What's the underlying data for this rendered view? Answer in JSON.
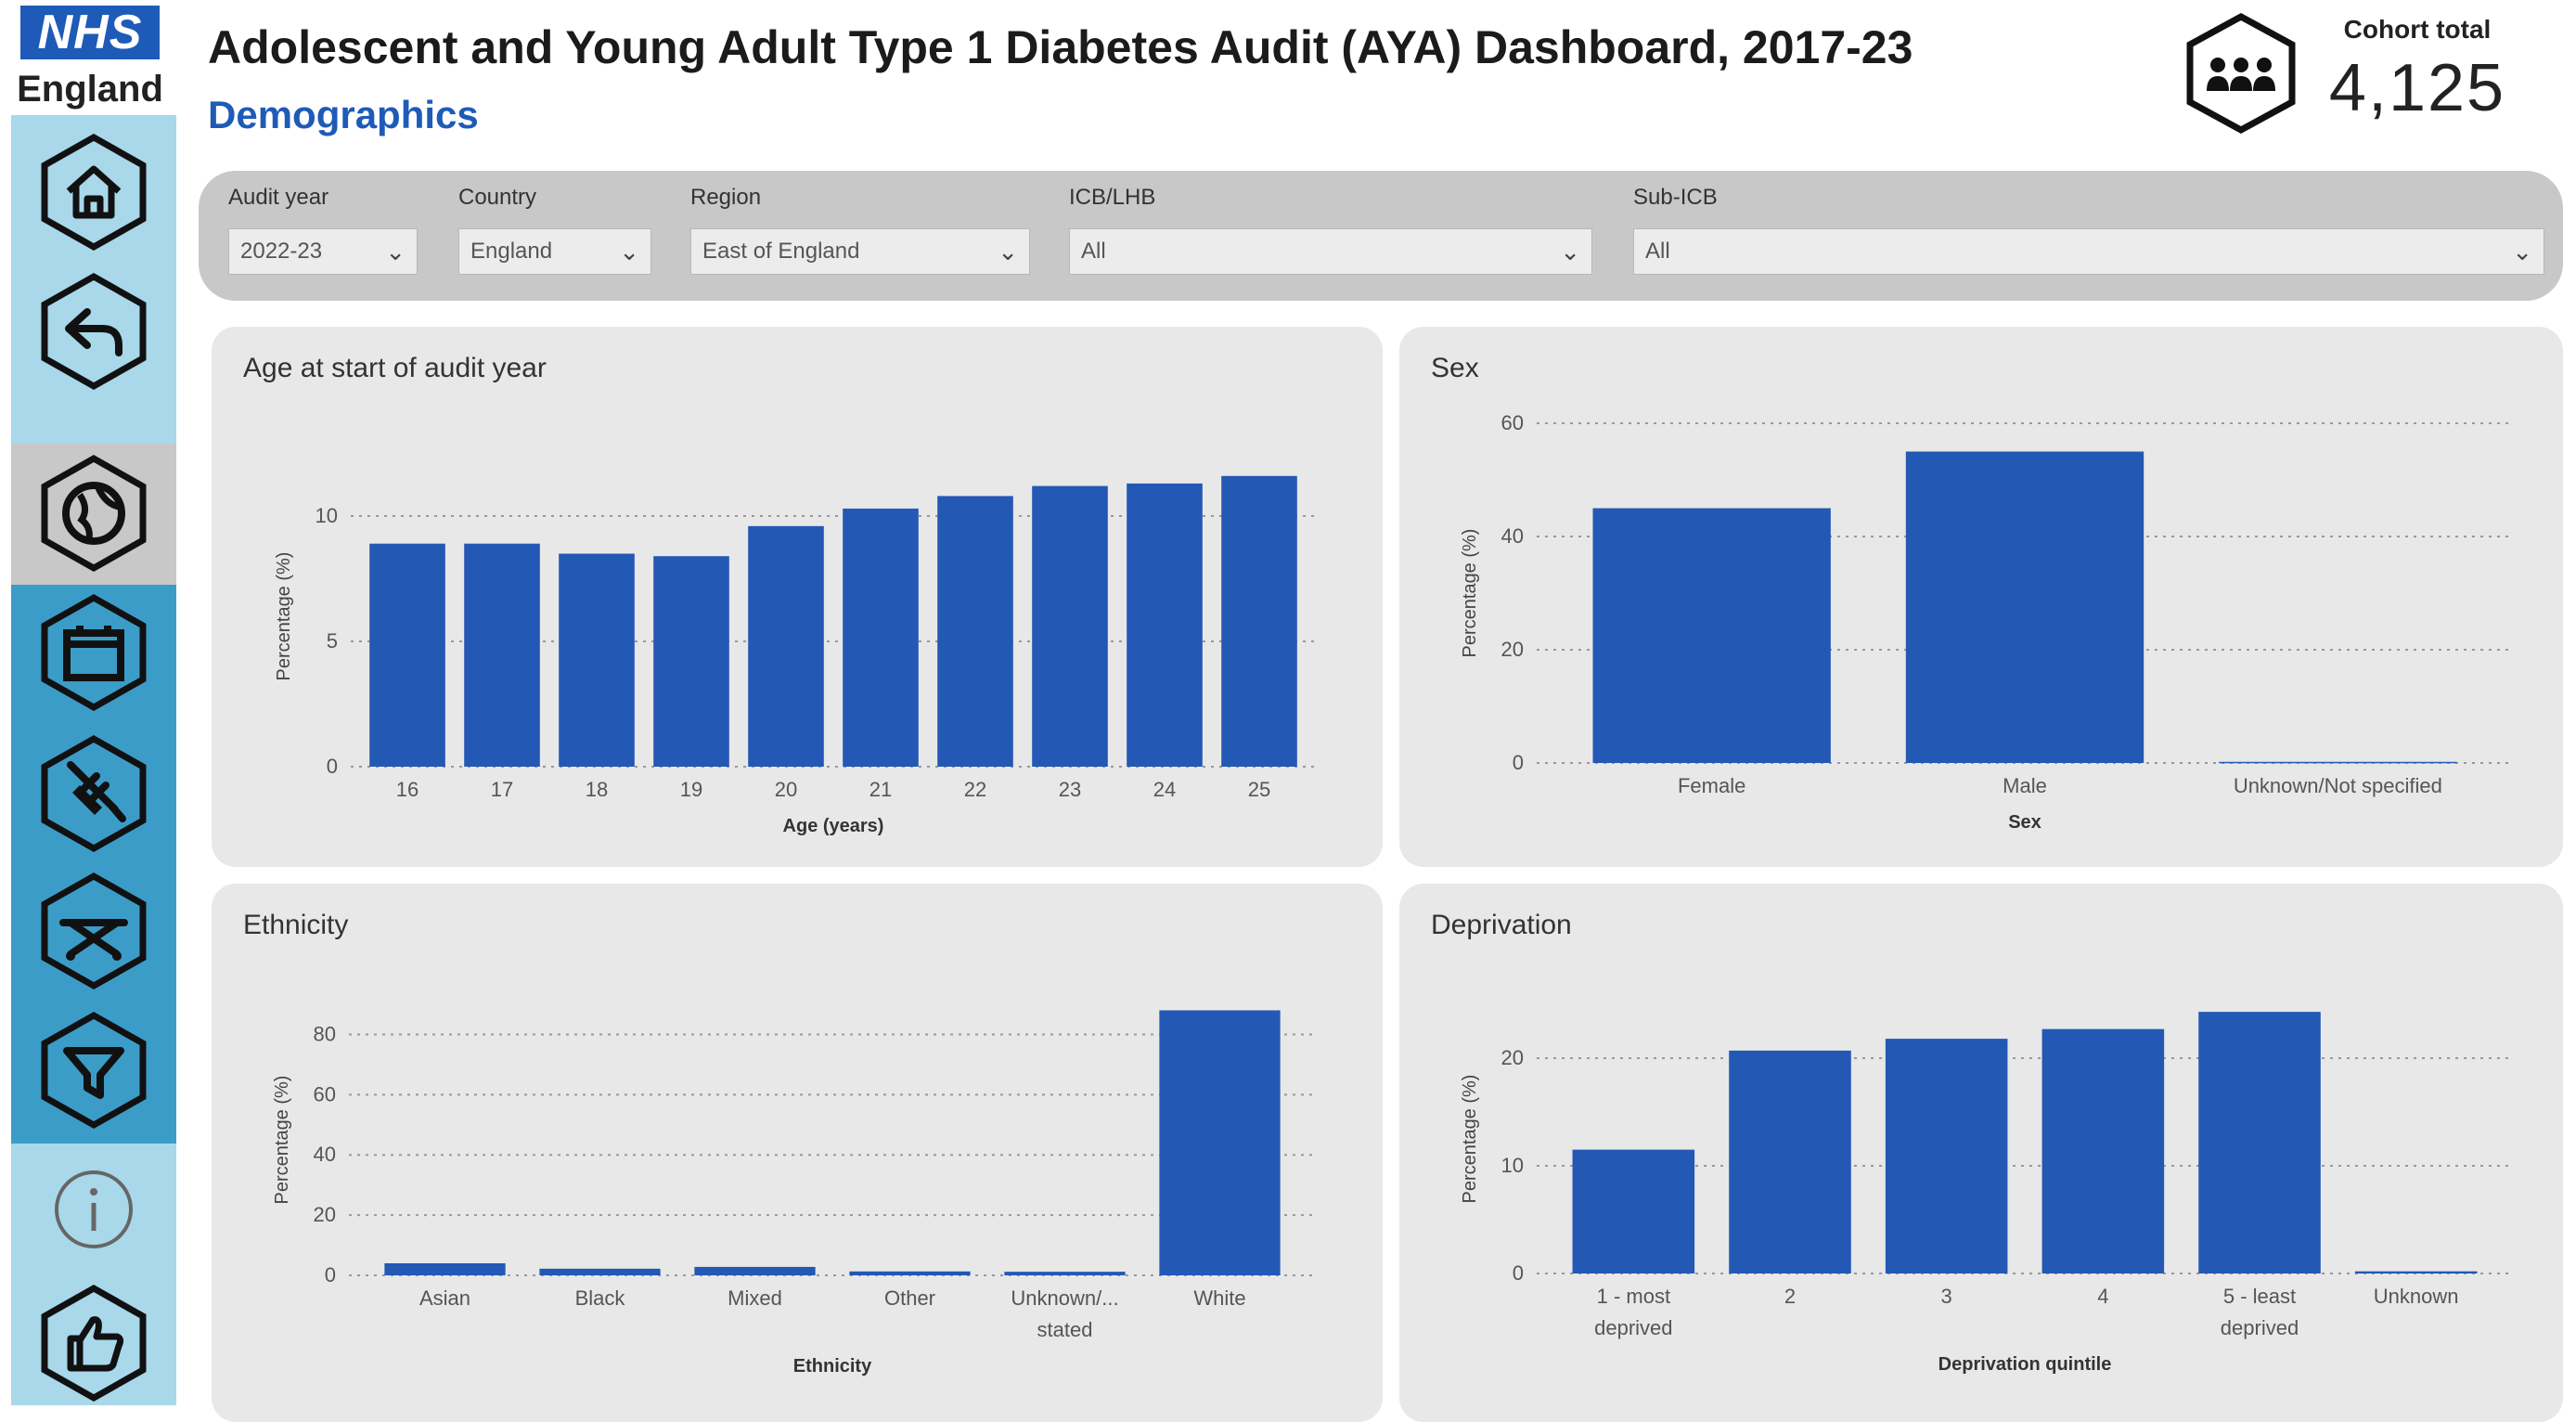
{
  "logo": {
    "badge": "NHS",
    "country": "England"
  },
  "header": {
    "title": "Adolescent and Young Adult Type 1 Diabetes Audit (AYA) Dashboard, 2017-23",
    "subtitle": "Demographics"
  },
  "cohort": {
    "label": "Cohort total",
    "value": "4,125"
  },
  "nav": [
    "home-icon",
    "back-arrow-icon",
    "globe-icon",
    "calendar-icon",
    "syringe-icon",
    "hospital-bed-icon",
    "filter-icon",
    "info-icon",
    "thumbs-up-icon"
  ],
  "filters": {
    "audit_year": {
      "label": "Audit year",
      "value": "2022-23"
    },
    "country": {
      "label": "Country",
      "value": "England"
    },
    "region": {
      "label": "Region",
      "value": "East of England"
    },
    "icb": {
      "label": "ICB/LHB",
      "value": "All"
    },
    "subicb": {
      "label": "Sub-ICB",
      "value": "All"
    }
  },
  "colors": {
    "bar": "#2358b5",
    "accent": "#1e5bb8",
    "panel": "#e8e8e8"
  },
  "chart_data": [
    {
      "id": "age",
      "type": "bar",
      "title": "Age at start of audit year",
      "xlabel": "Age (years)",
      "ylabel": "Percentage (%)",
      "categories": [
        "16",
        "17",
        "18",
        "19",
        "20",
        "21",
        "22",
        "23",
        "24",
        "25"
      ],
      "values": [
        8.9,
        8.9,
        8.5,
        8.4,
        9.6,
        10.3,
        10.8,
        11.2,
        11.3,
        11.6
      ],
      "ylim": [
        0,
        12
      ],
      "yticks": [
        0,
        5,
        10
      ],
      "grid": true
    },
    {
      "id": "sex",
      "type": "bar",
      "title": "Sex",
      "xlabel": "Sex",
      "ylabel": "Percentage (%)",
      "categories": [
        "Female",
        "Male",
        "Unknown/Not specified"
      ],
      "values": [
        45,
        55,
        0.2
      ],
      "ylim": [
        0,
        60
      ],
      "yticks": [
        0,
        20,
        40,
        60
      ],
      "grid": true
    },
    {
      "id": "ethnicity",
      "type": "bar",
      "title": "Ethnicity",
      "xlabel": "Ethnicity",
      "ylabel": "Percentage (%)",
      "categories": [
        "Asian",
        "Black",
        "Mixed",
        "Other",
        "Unknown/...|stated",
        "White"
      ],
      "values": [
        4,
        2.2,
        2.8,
        1.3,
        1.2,
        88
      ],
      "ylim": [
        0,
        90
      ],
      "yticks": [
        0,
        20,
        40,
        60,
        80
      ],
      "grid": true
    },
    {
      "id": "deprivation",
      "type": "bar",
      "title": "Deprivation",
      "xlabel": "Deprivation quintile",
      "ylabel": "Percentage (%)",
      "categories": [
        "1 - most|deprived",
        "2",
        "3",
        "4",
        "5 - least|deprived",
        "Unknown"
      ],
      "values": [
        11.5,
        20.7,
        21.8,
        22.7,
        24.3,
        0.2
      ],
      "ylim": [
        0,
        25
      ],
      "yticks": [
        0,
        10,
        20
      ],
      "grid": true
    }
  ]
}
